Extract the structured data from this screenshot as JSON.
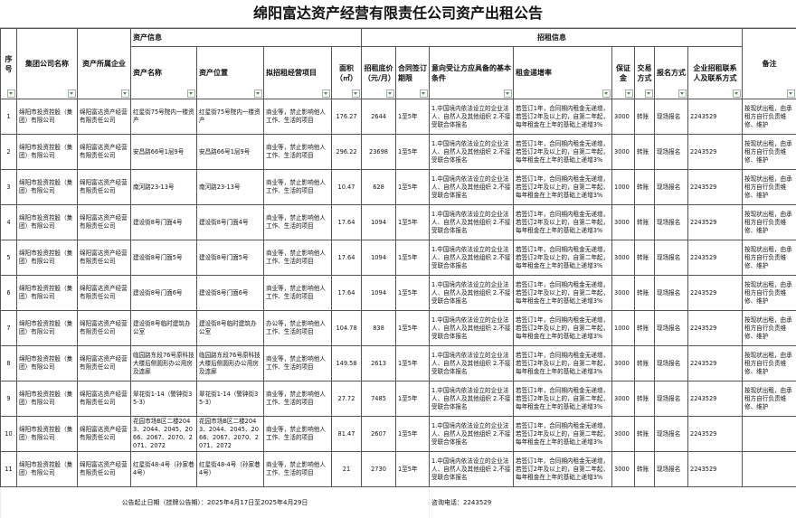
{
  "title": "绵阳富达资产经营有限责任公司资产出租公告",
  "headers": {
    "seq": "序号",
    "group": "集团公司名称",
    "owner": "资产所属企业",
    "asset_info": "资产信息",
    "rent_info": "招租信息",
    "asset_name": "资产名称",
    "asset_location": "资产位置",
    "project": "拟招租经营项目",
    "area": "面积（㎡）",
    "price": "招租底价（元/月）",
    "term": "合同签订期限",
    "conditions": "意向受让方应具备的基本条件",
    "rate": "租金递增率",
    "deposit": "保证金",
    "trade": "交易方式",
    "signup": "报名方式",
    "contact": "企业招租联系人及联系方式",
    "remarks": "备注"
  },
  "rows": [
    {
      "seq": "1",
      "group": "绵阳市投资控股（集团）有限公司",
      "owner": "绵阳富达资产经营有限责任公司",
      "name": "红星街75号院内一楼资产",
      "location": "红星街75号院内一楼资产",
      "project": "商业等，禁止影响他人工作、生活的项目",
      "area": "176.27",
      "price": "2644",
      "term": "1至5年",
      "conditions": "1.中国境内依法设立的企业法人、自然人及其他组织 2.不接受联合体报名",
      "rate": "若签订1年，合同期内租金无递增，若签订2年及以上的，自第二年起，每年租金在上年的基础上递增3%",
      "deposit": "3000",
      "trade": "转账",
      "signup": "现场报名",
      "contact": "2243529",
      "remarks": "按现状出租，由承租方自行负责维修、维护"
    },
    {
      "seq": "2",
      "group": "绵阳市投资控股（集团）有限公司",
      "owner": "绵阳富达资产经营有限责任公司",
      "name": "安昌路66号1层9号",
      "location": "安昌路66号1层9号",
      "project": "商业等，禁止影响他人工作、生活的项目",
      "area": "296.22",
      "price": "23698",
      "term": "1至5年",
      "conditions": "1.中国境内依法设立的企业法人、自然人及其他组织 2.不接受联合体报名",
      "rate": "若签订1年，合同期内租金无递增，若签订2年及以上的，自第二年起，每年租金在上年的基础上递增3%",
      "deposit": "3000",
      "trade": "转账",
      "signup": "现场报名",
      "contact": "2243529",
      "remarks": "按现状出租，由承租方自行负责维修、维护"
    },
    {
      "seq": "3",
      "group": "绵阳市投资控股（集团）有限公司",
      "owner": "绵阳富达资产经营有限责任公司",
      "name": "南河路23-13号",
      "location": "南河路23-13号",
      "project": "商业等，禁止影响他人工作、生活的项目",
      "area": "10.47",
      "price": "628",
      "term": "1至5年",
      "conditions": "1.中国境内依法设立的企业法人、自然人及其他组织 2.不接受联合体报名",
      "rate": "若签订1年，合同期内租金无递增，若签订2年及以上的，自第二年起，每年租金在上年的基础上递增3%",
      "deposit": "1000",
      "trade": "转账",
      "signup": "现场报名",
      "contact": "2243529",
      "remarks": "按现状出租，由承租方自行负责维修、维护"
    },
    {
      "seq": "4",
      "group": "绵阳市投资控股（集团）有限公司",
      "owner": "绵阳富达资产经营有限责任公司",
      "name": "建设街8号门面4号",
      "location": "建设街8号门面4号",
      "project": "商业等，禁止影响他人工作、生活的项目",
      "area": "17.64",
      "price": "1094",
      "term": "1至5年",
      "conditions": "1.中国境内依法设立的企业法人、自然人及其他组织 2.不接受联合体报名",
      "rate": "若签订1年，合同期内租金无递增，若签订2年及以上的，自第二年起，每年租金在上年的基础上递增3%",
      "deposit": "3000",
      "trade": "转账",
      "signup": "现场报名",
      "contact": "2243529",
      "remarks": "按现状出租，由承租方自行负责维修、维护"
    },
    {
      "seq": "5",
      "group": "绵阳市投资控股（集团）有限公司",
      "owner": "绵阳富达资产经营有限责任公司",
      "name": "建设街8号门面5号",
      "location": "建设街8号门面5号",
      "project": "商业等，禁止影响他人工作、生活的项目",
      "area": "17.64",
      "price": "1094",
      "term": "1至5年",
      "conditions": "1.中国境内依法设立的企业法人、自然人及其他组织 2.不接受联合体报名",
      "rate": "若签订1年，合同期内租金无递增，若签订2年及以上的，自第二年起，每年租金在上年的基础上递增3%",
      "deposit": "3000",
      "trade": "转账",
      "signup": "现场报名",
      "contact": "2243529",
      "remarks": "按现状出租，由承租方自行负责维修、维护"
    },
    {
      "seq": "6",
      "group": "绵阳市投资控股（集团）有限公司",
      "owner": "绵阳富达资产经营有限责任公司",
      "name": "建设街8号门面6号",
      "location": "建设街8号门面6号",
      "project": "商业等，禁止影响他人工作、生活的项目",
      "area": "17.64",
      "price": "1094",
      "term": "1至5年",
      "conditions": "1.中国境内依法设立的企业法人、自然人及其他组织 2.不接受联合体报名",
      "rate": "若签订1年，合同期内租金无递增，若签订2年及以上的，自第二年起，每年租金在上年的基础上递增3%",
      "deposit": "3000",
      "trade": "转账",
      "signup": "现场报名",
      "contact": "2243529",
      "remarks": "按现状出租，由承租方自行负责维修、维护"
    },
    {
      "seq": "7",
      "group": "绵阳市投资控股（集团）有限公司",
      "owner": "绵阳富达资产经营有限责任公司",
      "name": "建设街8号临时建筑办公室",
      "location": "建设街8号临时建筑办公室",
      "project": "办公等，禁止影响他人工作、生活的项目",
      "area": "104.78",
      "price": "838",
      "term": "1至5年",
      "conditions": "1.中国境内依法设立的企业法人、自然人及其他组织 2.不接受联合体报名",
      "rate": "若签订1年，合同期内租金无递增，若签订2年及以上的，自第二年起，每年租金在上年的基础上递增3%",
      "deposit": "1000",
      "trade": "转账",
      "signup": "现场报名",
      "contact": "2243529",
      "remarks": "按现状出租，由承租方自行负责维修、维护"
    },
    {
      "seq": "8",
      "group": "绵阳市投资控股（集团）有限公司",
      "owner": "绵阳富达资产经营有限责任公司",
      "name": "临园路东段76号原科技大楼后侧圆形办公用房及连廊",
      "location": "临园路东段76号原科技大楼后侧圆形办公用房及连廊",
      "project": "商业等，禁止影响他人工作、生活的项目",
      "area": "149.58",
      "price": "2613",
      "term": "1至5年",
      "conditions": "1.中国境内依法设立的企业法人、自然人及其他组织 2.不接受联合体报名",
      "rate": "若签订1年，合同期内租金无递增，若签订2年及以上的，自第二年起，每年租金在上年的基础上递增3%",
      "deposit": "3000",
      "trade": "转账",
      "signup": "现场报名",
      "contact": "2243529",
      "remarks": "按现状出租，由承租方自行负责维修、维护"
    },
    {
      "seq": "9",
      "group": "绵阳市投资控股（集团）有限公司",
      "owner": "绵阳富达资产经营有限责任公司",
      "name": "翠花街1-14（警钟街35-3）",
      "location": "翠花街1-14（警钟街35-3）",
      "project": "商业等，禁止影响他人工作、生活的项目",
      "area": "27.72",
      "price": "7485",
      "term": "1至5年",
      "conditions": "1.中国境内依法设立的企业法人、自然人及其他组织 2.不接受联合体报名",
      "rate": "若签订1年，合同期内租金无递增，若签订2年及以上的，自第二年起，每年租金在上年的基础上递增3%",
      "deposit": "3000",
      "trade": "转账",
      "signup": "现场报名",
      "contact": "2243529",
      "remarks": "按现状出租，由承租方自行负责维修、维护"
    },
    {
      "seq": "10",
      "group": "绵阳市投资控股（集团）有限公司",
      "owner": "绵阳富达资产经营有限责任公司",
      "name": "花园市场B区二楼2043、2044、2045、2066、2067、2070、2071、2072",
      "location": "花园市场B区二楼2043、2044、2045、2066、2067、2070、2071、2072",
      "project": "商业等，禁止影响他人工作、生活的项目",
      "area": "81.47",
      "price": "2607",
      "term": "1至5年",
      "conditions": "1.中国境内依法设立的企业法人、自然人及其他组织 2.不接受联合体报名",
      "rate": "若签订1年，合同期内租金无递增，若签订2年及以上的，自第二年起，每年租金在上年的基础上递增3%",
      "deposit": "3000",
      "trade": "转账",
      "signup": "现场报名",
      "contact": "2243529",
      "remarks": ""
    },
    {
      "seq": "11",
      "group": "绵阳市投资控股（集团）有限公司",
      "owner": "绵阳富达资产经营有限责任公司",
      "name": "红星街48-4号（孙家巷4号）",
      "location": "红星街48-4号（孙家巷4号）",
      "project": "商业等，禁止影响他人工作、生活的项目",
      "area": "21",
      "price": "2730",
      "term": "1至5年",
      "conditions": "1.中国境内依法设立的企业法人、自然人及其他组织 2.不接受联合体报名",
      "rate": "若签订1年，合同期内租金无递增，若签订2年及以上的，自第二年起，每年租金在上年的基础上递增3%",
      "deposit": "3000",
      "trade": "转账",
      "signup": "现场报名",
      "contact": "2243529",
      "remarks": ""
    }
  ],
  "footer": {
    "period": "公告起止日期（挂牌公告期）：2025年4月17日至2025年4月29日",
    "phone": "咨询电话：2243529"
  },
  "colors": {
    "filter_arrow": "#2a9a4a",
    "border": "#555555"
  }
}
